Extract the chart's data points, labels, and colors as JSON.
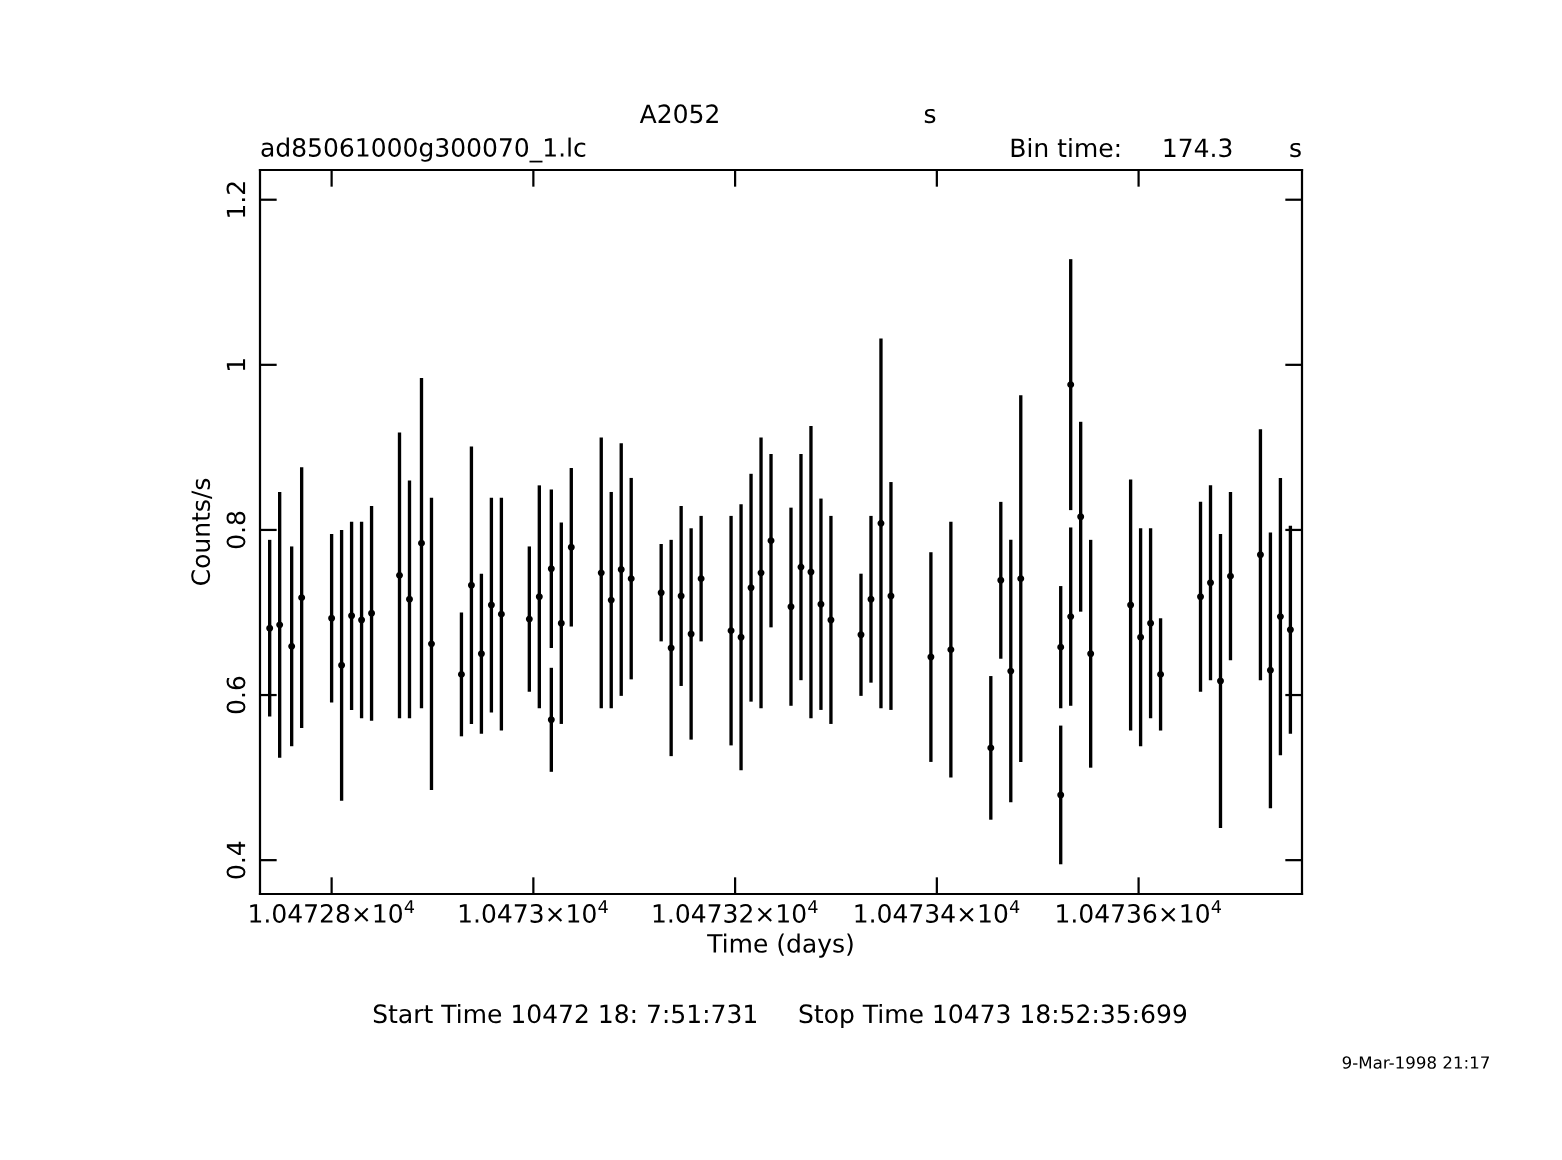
{
  "chart_data": {
    "type": "scatter",
    "title": "A2052",
    "xlabel": "Time (days)",
    "ylabel": "Counts/s",
    "annotations": [
      "s",
      "ad85061000g300070_1.lc",
      "Bin time:     174.3       s",
      "Start Time 10472 18: 7:51:731     Stop Time 10473 18:52:35:699",
      "9-Mar-1998 21:17"
    ],
    "x": [
      10472.7386,
      10472.7485,
      10472.7604,
      10472.7703,
      10472.8,
      10472.8099,
      10472.8198,
      10472.8297,
      10472.8396,
      10472.8673,
      10472.8772,
      10472.8891,
      10472.899,
      10472.9287,
      10472.9386,
      10472.9485,
      10472.9584,
      10472.9683,
      10472.996,
      10473.0059,
      10473.0178,
      10473.0178,
      10473.0277,
      10473.0376,
      10473.0673,
      10473.0772,
      10473.0871,
      10473.097,
      10473.1267,
      10473.1366,
      10473.1465,
      10473.1564,
      10473.1663,
      10473.196,
      10473.2059,
      10473.2158,
      10473.2257,
      10473.2356,
      10473.2554,
      10473.2653,
      10473.2752,
      10473.2851,
      10473.295,
      10473.3248,
      10473.3347,
      10473.3446,
      10473.3545,
      10473.3941,
      10473.4139,
      10473.4535,
      10473.4634,
      10473.4733,
      10473.4832,
      10473.5228,
      10473.5228,
      10473.5327,
      10473.5327,
      10473.5426,
      10473.5525,
      10473.5921,
      10473.602,
      10473.6119,
      10473.6218,
      10473.6614,
      10473.6713,
      10473.6812,
      10473.6911,
      10473.7208,
      10473.7307,
      10473.7406,
      10473.7505
    ],
    "series": [
      {
        "color": "#000000",
        "values": [
          0.681,
          0.685,
          0.659,
          0.718,
          0.693,
          0.636,
          0.696,
          0.691,
          0.699,
          0.745,
          0.716,
          0.784,
          0.662,
          0.625,
          0.733,
          0.65,
          0.709,
          0.698,
          0.692,
          0.719,
          0.753,
          0.57,
          0.687,
          0.779,
          0.748,
          0.715,
          0.752,
          0.741,
          0.724,
          0.657,
          0.72,
          0.674,
          0.741,
          0.678,
          0.67,
          0.73,
          0.748,
          0.787,
          0.707,
          0.755,
          0.749,
          0.71,
          0.691,
          0.673,
          0.716,
          0.808,
          0.72,
          0.646,
          0.655,
          0.536,
          0.739,
          0.629,
          0.741,
          0.658,
          0.479,
          0.976,
          0.695,
          0.816,
          0.65,
          0.709,
          0.67,
          0.687,
          0.625,
          0.719,
          0.736,
          0.617,
          0.744,
          0.77,
          0.63,
          0.695,
          0.679
        ],
        "errors": [
          0.107,
          0.161,
          0.121,
          0.158,
          0.102,
          0.164,
          0.114,
          0.119,
          0.13,
          0.173,
          0.144,
          0.2,
          0.177,
          0.075,
          0.168,
          0.097,
          0.13,
          0.141,
          0.088,
          0.135,
          0.096,
          0.063,
          0.122,
          0.096,
          0.164,
          0.131,
          0.153,
          0.122,
          0.059,
          0.131,
          0.109,
          0.128,
          0.076,
          0.139,
          0.161,
          0.138,
          0.164,
          0.105,
          0.12,
          0.137,
          0.177,
          0.128,
          0.126,
          0.074,
          0.101,
          0.224,
          0.138,
          0.127,
          0.155,
          0.087,
          0.095,
          0.159,
          0.222,
          0.074,
          0.084,
          0.152,
          0.108,
          0.115,
          0.138,
          0.152,
          0.132,
          0.115,
          0.068,
          0.115,
          0.118,
          0.178,
          0.102,
          0.152,
          0.167,
          0.168,
          0.126
        ]
      }
    ],
    "xlim": [
      10472.729,
      10473.762
    ],
    "ylim": [
      0.359,
      1.236
    ],
    "xticks": [
      {
        "value": 10472.8,
        "label": "1.04728×10$^{4}$"
      },
      {
        "value": 10473.0,
        "label": "1.0473×10$^{4}$"
      },
      {
        "value": 10473.2,
        "label": "1.04732×10$^{4}$"
      },
      {
        "value": 10473.4,
        "label": "1.04734×10$^{4}$"
      },
      {
        "value": 10473.6,
        "label": "1.04736×10$^{4}$"
      }
    ],
    "yticks": [
      0.4,
      0.6,
      0.8,
      1,
      1.2
    ],
    "marker": "circle",
    "grid": false,
    "legend": false
  }
}
